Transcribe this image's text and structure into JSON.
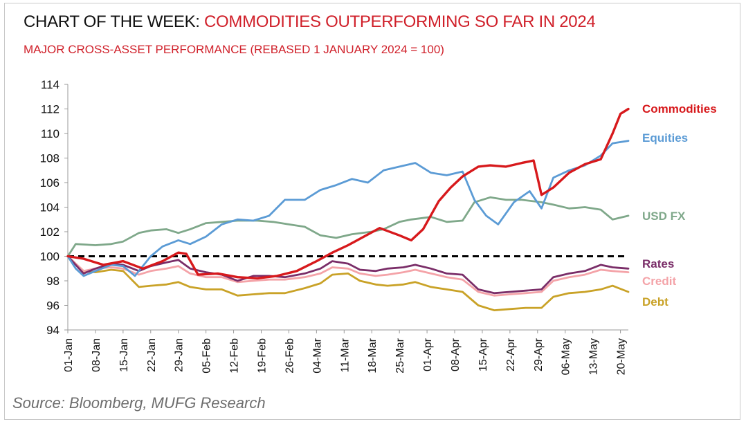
{
  "header": {
    "title_prefix": "CHART OF THE WEEK: ",
    "title_highlight": "COMMODITIES OUTPERFORMING SO FAR IN 2024",
    "subtitle": "MAJOR CROSS-ASSET PERFORMANCE (REBASED 1 JANUARY 2024 = 100)"
  },
  "footer": {
    "source": "Source: Bloomberg, MUFG Research"
  },
  "chart_data": {
    "type": "line",
    "x_ticks": [
      "01-Jan",
      "08-Jan",
      "15-Jan",
      "22-Jan",
      "29-Jan",
      "05-Feb",
      "12-Feb",
      "19-Feb",
      "26-Feb",
      "04-Mar",
      "11-Mar",
      "18-Mar",
      "25-Mar",
      "01-Apr",
      "08-Apr",
      "15-Apr",
      "22-Apr",
      "29-Apr",
      "06-May",
      "13-May",
      "20-May"
    ],
    "x_range": [
      "01-Jan",
      "22-May"
    ],
    "ylim": [
      94,
      114
    ],
    "y_ticks": [
      94,
      96,
      98,
      100,
      102,
      104,
      106,
      108,
      110,
      112,
      114
    ],
    "reference_line": {
      "value": 100,
      "style": "dashed",
      "color": "#000000"
    },
    "legend_placement": "right, inline labels at series ends",
    "grid": false,
    "series": [
      {
        "name": "Commodities",
        "color": "#d7191c",
        "x": [
          "01-Jan",
          "05-Jan",
          "10-Jan",
          "15-Jan",
          "20-Jan",
          "25-Jan",
          "29-Jan",
          "31-Jan",
          "03-Feb",
          "08-Feb",
          "13-Feb",
          "18-Feb",
          "23-Feb",
          "28-Feb",
          "04-Mar",
          "08-Mar",
          "12-Mar",
          "16-Mar",
          "20-Mar",
          "25-Mar",
          "28-Mar",
          "31-Mar",
          "04-Apr",
          "07-Apr",
          "10-Apr",
          "14-Apr",
          "17-Apr",
          "21-Apr",
          "25-Apr",
          "28-Apr",
          "30-Apr",
          "03-May",
          "07-May",
          "11-May",
          "15-May",
          "18-May",
          "20-May",
          "22-May"
        ],
        "values": [
          100.0,
          99.8,
          99.3,
          99.6,
          99.0,
          99.6,
          100.3,
          100.2,
          98.5,
          98.6,
          98.3,
          98.2,
          98.4,
          98.8,
          99.6,
          100.3,
          100.9,
          101.6,
          102.3,
          101.7,
          101.3,
          102.2,
          104.5,
          105.6,
          106.5,
          107.3,
          107.4,
          107.3,
          107.6,
          107.8,
          105.0,
          105.6,
          106.8,
          107.5,
          107.9,
          110.0,
          111.6,
          112.0
        ]
      },
      {
        "name": "Equities",
        "color": "#5b9bd5",
        "x": [
          "01-Jan",
          "03-Jan",
          "05-Jan",
          "08-Jan",
          "12-Jan",
          "15-Jan",
          "18-Jan",
          "22-Jan",
          "25-Jan",
          "29-Jan",
          "01-Feb",
          "05-Feb",
          "09-Feb",
          "13-Feb",
          "17-Feb",
          "21-Feb",
          "25-Feb",
          "01-Mar",
          "05-Mar",
          "09-Mar",
          "13-Mar",
          "17-Mar",
          "21-Mar",
          "25-Mar",
          "29-Mar",
          "02-Apr",
          "06-Apr",
          "10-Apr",
          "13-Apr",
          "16-Apr",
          "19-Apr",
          "23-Apr",
          "27-Apr",
          "30-Apr",
          "03-May",
          "07-May",
          "11-May",
          "15-May",
          "18-May",
          "22-May"
        ],
        "values": [
          100.0,
          99.0,
          98.4,
          98.8,
          99.3,
          99.2,
          98.4,
          100.0,
          100.8,
          101.3,
          101.0,
          101.6,
          102.6,
          103.0,
          102.9,
          103.3,
          104.6,
          104.6,
          105.4,
          105.8,
          106.3,
          106.0,
          107.0,
          107.3,
          107.6,
          106.8,
          106.6,
          106.9,
          104.6,
          103.3,
          102.6,
          104.4,
          105.3,
          103.9,
          106.4,
          107.0,
          107.4,
          108.2,
          109.2,
          109.4
        ]
      },
      {
        "name": "USD FX",
        "color": "#7fa88a",
        "x": [
          "01-Jan",
          "03-Jan",
          "08-Jan",
          "12-Jan",
          "15-Jan",
          "19-Jan",
          "22-Jan",
          "26-Jan",
          "29-Jan",
          "01-Feb",
          "05-Feb",
          "09-Feb",
          "13-Feb",
          "18-Feb",
          "22-Feb",
          "26-Feb",
          "01-Mar",
          "05-Mar",
          "09-Mar",
          "13-Mar",
          "18-Mar",
          "21-Mar",
          "25-Mar",
          "28-Mar",
          "02-Apr",
          "06-Apr",
          "10-Apr",
          "13-Apr",
          "17-Apr",
          "21-Apr",
          "25-Apr",
          "30-Apr",
          "03-May",
          "07-May",
          "11-May",
          "15-May",
          "18-May",
          "22-May"
        ],
        "values": [
          100.0,
          101.0,
          100.9,
          101.0,
          101.2,
          101.9,
          102.1,
          102.2,
          101.9,
          102.2,
          102.7,
          102.8,
          102.9,
          102.9,
          102.8,
          102.6,
          102.4,
          101.7,
          101.5,
          101.8,
          102.0,
          102.2,
          102.8,
          103.0,
          103.2,
          102.8,
          102.9,
          104.4,
          104.8,
          104.6,
          104.6,
          104.4,
          104.2,
          103.9,
          104.0,
          103.8,
          103.0,
          103.3
        ]
      },
      {
        "name": "Rates",
        "color": "#7a2d68",
        "x": [
          "01-Jan",
          "05-Jan",
          "08-Jan",
          "12-Jan",
          "15-Jan",
          "19-Jan",
          "22-Jan",
          "26-Jan",
          "29-Jan",
          "01-Feb",
          "05-Feb",
          "09-Feb",
          "13-Feb",
          "17-Feb",
          "21-Feb",
          "25-Feb",
          "01-Mar",
          "05-Mar",
          "08-Mar",
          "12-Mar",
          "15-Mar",
          "19-Mar",
          "22-Mar",
          "26-Mar",
          "29-Mar",
          "02-Apr",
          "06-Apr",
          "10-Apr",
          "14-Apr",
          "18-Apr",
          "22-Apr",
          "26-Apr",
          "30-Apr",
          "03-May",
          "07-May",
          "11-May",
          "15-May",
          "18-May",
          "22-May"
        ],
        "values": [
          100.0,
          98.6,
          99.0,
          99.4,
          99.3,
          98.8,
          99.2,
          99.5,
          99.7,
          99.0,
          98.7,
          98.5,
          98.0,
          98.4,
          98.4,
          98.3,
          98.6,
          99.0,
          99.6,
          99.4,
          98.9,
          98.8,
          99.0,
          99.1,
          99.3,
          99.0,
          98.6,
          98.5,
          97.3,
          97.0,
          97.1,
          97.2,
          97.3,
          98.3,
          98.6,
          98.8,
          99.3,
          99.1,
          99.0
        ]
      },
      {
        "name": "Credit",
        "color": "#f4a3a8",
        "x": [
          "01-Jan",
          "05-Jan",
          "08-Jan",
          "12-Jan",
          "15-Jan",
          "19-Jan",
          "22-Jan",
          "26-Jan",
          "29-Jan",
          "01-Feb",
          "05-Feb",
          "09-Feb",
          "13-Feb",
          "17-Feb",
          "21-Feb",
          "25-Feb",
          "01-Mar",
          "05-Mar",
          "08-Mar",
          "12-Mar",
          "15-Mar",
          "19-Mar",
          "22-Mar",
          "26-Mar",
          "29-Mar",
          "02-Apr",
          "06-Apr",
          "10-Apr",
          "14-Apr",
          "18-Apr",
          "22-Apr",
          "26-Apr",
          "30-Apr",
          "03-May",
          "07-May",
          "11-May",
          "15-May",
          "18-May",
          "22-May"
        ],
        "values": [
          100.0,
          98.8,
          99.0,
          99.1,
          99.0,
          98.5,
          98.8,
          99.0,
          99.2,
          98.6,
          98.3,
          98.3,
          97.9,
          98.0,
          98.1,
          98.1,
          98.3,
          98.6,
          99.1,
          99.0,
          98.6,
          98.4,
          98.5,
          98.7,
          98.9,
          98.6,
          98.3,
          98.1,
          97.1,
          96.8,
          96.9,
          97.0,
          97.1,
          98.0,
          98.3,
          98.5,
          98.9,
          98.8,
          98.7
        ]
      },
      {
        "name": "Debt",
        "color": "#c9a227",
        "x": [
          "01-Jan",
          "05-Jan",
          "08-Jan",
          "12-Jan",
          "15-Jan",
          "19-Jan",
          "22-Jan",
          "26-Jan",
          "29-Jan",
          "01-Feb",
          "05-Feb",
          "09-Feb",
          "13-Feb",
          "17-Feb",
          "21-Feb",
          "25-Feb",
          "01-Mar",
          "05-Mar",
          "08-Mar",
          "12-Mar",
          "15-Mar",
          "19-Mar",
          "22-Mar",
          "26-Mar",
          "29-Mar",
          "02-Apr",
          "06-Apr",
          "10-Apr",
          "14-Apr",
          "18-Apr",
          "22-Apr",
          "26-Apr",
          "30-Apr",
          "03-May",
          "07-May",
          "11-May",
          "15-May",
          "18-May",
          "22-May"
        ],
        "values": [
          100.0,
          98.8,
          98.7,
          98.9,
          98.8,
          97.5,
          97.6,
          97.7,
          97.9,
          97.5,
          97.3,
          97.3,
          96.8,
          96.9,
          97.0,
          97.0,
          97.4,
          97.8,
          98.5,
          98.6,
          98.0,
          97.7,
          97.6,
          97.7,
          97.9,
          97.5,
          97.3,
          97.1,
          96.0,
          95.6,
          95.7,
          95.8,
          95.8,
          96.7,
          97.0,
          97.1,
          97.3,
          97.6,
          97.1
        ]
      }
    ]
  }
}
